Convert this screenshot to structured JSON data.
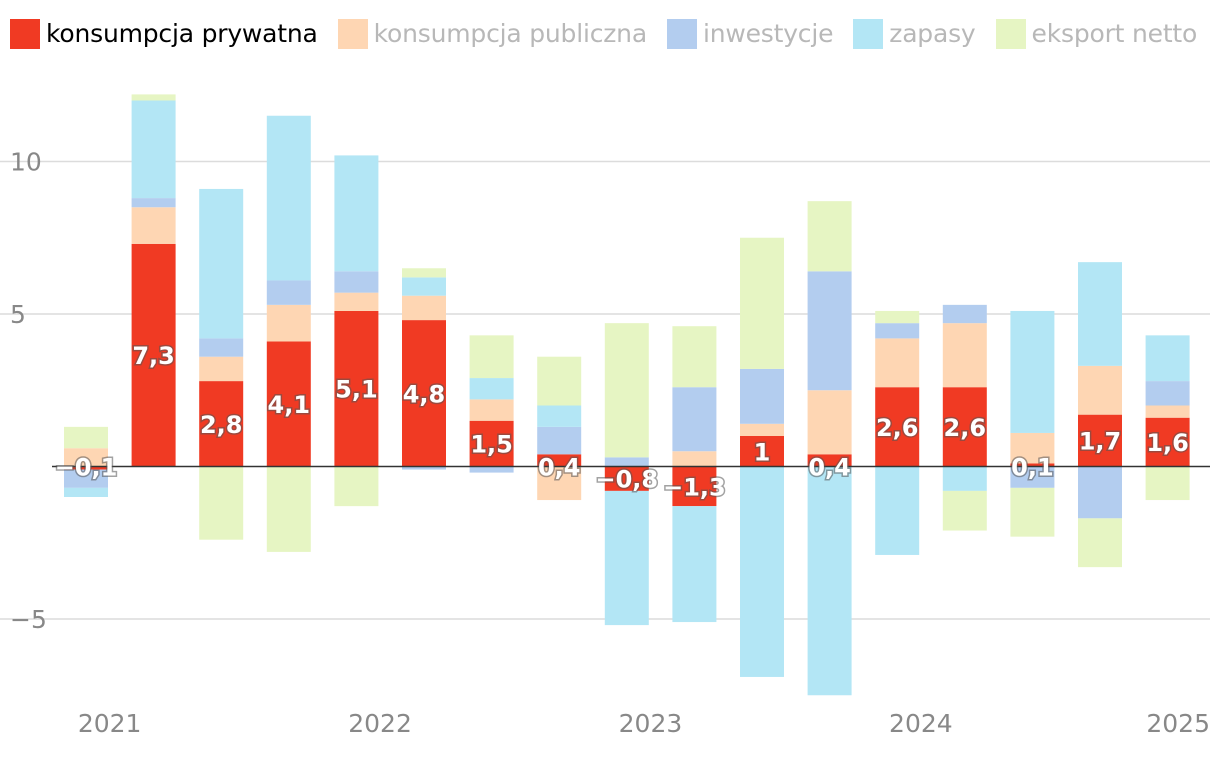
{
  "chart_data": {
    "type": "bar",
    "stacked": true,
    "title": "",
    "xlabel": "",
    "ylabel": "",
    "ylim": [
      -7.6,
      12.4
    ],
    "yticks": [
      10,
      5,
      0,
      -5
    ],
    "ytick_labels": [
      "10",
      "5",
      "",
      "−5"
    ],
    "xtick_labels": [
      "2021",
      "2022",
      "2023",
      "2024",
      "2025"
    ],
    "xtick_positions": [
      0.35,
      4.35,
      8.35,
      12.35,
      16.35
    ],
    "categories": [
      "2021Q1",
      "2021Q2",
      "2021Q3",
      "2021Q4",
      "2022Q1",
      "2022Q2",
      "2022Q3",
      "2022Q4",
      "2023Q1",
      "2023Q2",
      "2023Q3",
      "2023Q4",
      "2024Q1",
      "2024Q2",
      "2024Q3",
      "2024Q4",
      "2025Q1"
    ],
    "series": [
      {
        "name": "konsumpcja prywatna",
        "color": "#f03a23",
        "text_color": "#000000",
        "values": [
          -0.1,
          7.3,
          2.8,
          4.1,
          5.1,
          4.8,
          1.5,
          0.4,
          -0.8,
          -1.3,
          1.0,
          0.4,
          2.6,
          2.6,
          0.1,
          1.7,
          1.6
        ]
      },
      {
        "name": "konsumpcja publiczna",
        "color": "#fed6b3",
        "text_color": "#b8b8b8",
        "values": [
          0.6,
          1.2,
          0.8,
          1.2,
          0.6,
          0.8,
          0.7,
          -1.1,
          0.0,
          0.5,
          0.4,
          2.1,
          1.6,
          2.1,
          1.0,
          1.6,
          0.4
        ]
      },
      {
        "name": "inwestycje",
        "color": "#b3cdef",
        "text_color": "#b8b8b8",
        "values": [
          -0.6,
          0.3,
          0.6,
          0.8,
          0.7,
          -0.1,
          -0.2,
          0.9,
          0.3,
          2.1,
          1.8,
          3.9,
          0.5,
          0.6,
          -0.7,
          -1.7,
          0.8
        ]
      },
      {
        "name": "zapasy",
        "color": "#b3e6f5",
        "text_color": "#b8b8b8",
        "values": [
          -0.3,
          3.2,
          4.9,
          5.4,
          3.8,
          0.6,
          0.7,
          0.7,
          -4.4,
          -3.8,
          -6.9,
          -7.5,
          -2.9,
          -0.8,
          4.0,
          3.4,
          1.5
        ]
      },
      {
        "name": "eksport netto",
        "color": "#e6f5c3",
        "text_color": "#b8b8b8",
        "values": [
          0.7,
          0.2,
          -2.4,
          -2.8,
          -1.3,
          0.3,
          1.4,
          1.6,
          4.4,
          2.0,
          4.3,
          2.3,
          0.4,
          -1.3,
          -1.6,
          -1.6,
          -1.1
        ]
      }
    ],
    "data_labels": [
      "−0,1",
      "7,3",
      "2,8",
      "4,1",
      "5,1",
      "4,8",
      "1,5",
      "0,4",
      "−0,8",
      "−1,3",
      "1",
      "0,4",
      "2,6",
      "2,6",
      "0,1",
      "1,7",
      "1,6"
    ],
    "legend_position": "top-left",
    "grid": true
  }
}
